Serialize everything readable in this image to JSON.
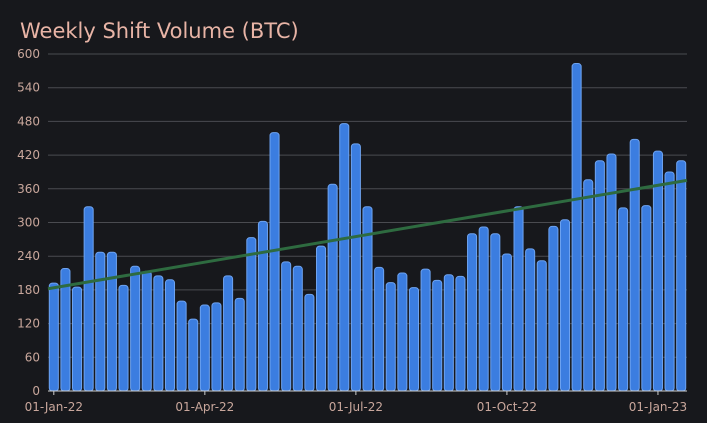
{
  "chart_data": {
    "type": "bar",
    "title": "Weekly Shift Volume (BTC)",
    "xlabel": "",
    "ylabel": "",
    "ylim": [
      0,
      600
    ],
    "yticks": [
      0,
      60,
      120,
      180,
      240,
      300,
      360,
      420,
      480,
      540,
      600
    ],
    "xtick_labels": [
      {
        "label": "01-Jan-22",
        "index": 0
      },
      {
        "label": "01-Apr-22",
        "index": 13
      },
      {
        "label": "01-Jul-22",
        "index": 26
      },
      {
        "label": "01-Oct-22",
        "index": 39
      },
      {
        "label": "01-Jan-23",
        "index": 52
      }
    ],
    "values": [
      192,
      218,
      185,
      328,
      247,
      247,
      188,
      222,
      213,
      205,
      198,
      160,
      128,
      153,
      157,
      205,
      165,
      273,
      302,
      460,
      230,
      222,
      172,
      258,
      368,
      476,
      440,
      328,
      220,
      193,
      210,
      184,
      217,
      197,
      207,
      204,
      280,
      292,
      280,
      244,
      328,
      253,
      232,
      293,
      305,
      583,
      376,
      410,
      422,
      326,
      448,
      330,
      427,
      390,
      410
    ],
    "trendline": {
      "start": 182,
      "end": 375
    },
    "grid": true,
    "legend": "none",
    "colors": {
      "bar": "#3b7de0",
      "bar_edge": "#6ea3f0",
      "trend": "#2e6b40",
      "background": "#17181c",
      "grid": "#4a4b50",
      "title": "#e8b4a6",
      "tick": "#c9a79c"
    }
  }
}
